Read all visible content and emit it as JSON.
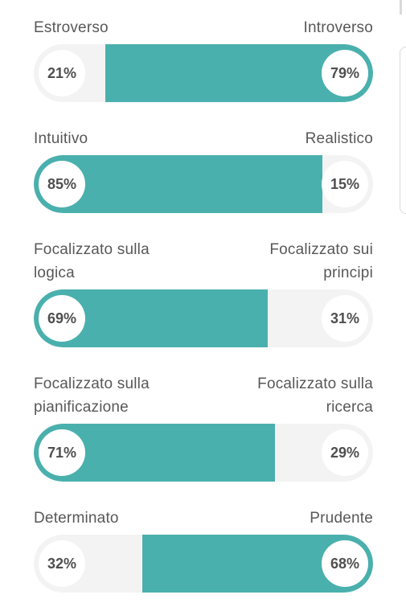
{
  "traits": [
    {
      "left_label": "Estroverso",
      "right_label": "Introverso",
      "left_pct": "21%",
      "right_pct": "79%",
      "dominant": "right",
      "dominant_value": 79
    },
    {
      "left_label": "Intuitivo",
      "right_label": "Realistico",
      "left_pct": "85%",
      "right_pct": "15%",
      "dominant": "left",
      "dominant_value": 85
    },
    {
      "left_label": "Focalizzato sulla\nlogica",
      "right_label": "Focalizzato sui\nprincipi",
      "left_pct": "69%",
      "right_pct": "31%",
      "dominant": "left",
      "dominant_value": 69
    },
    {
      "left_label": "Focalizzato sulla\npianificazione",
      "right_label": "Focalizzato sulla\nricerca",
      "left_pct": "71%",
      "right_pct": "29%",
      "dominant": "left",
      "dominant_value": 71
    },
    {
      "left_label": "Determinato",
      "right_label": "Prudente",
      "left_pct": "32%",
      "right_pct": "68%",
      "dominant": "right",
      "dominant_value": 68
    }
  ],
  "colors": {
    "accent": "#4ab0ad",
    "track": "#f3f3f3",
    "text": "#585858"
  }
}
